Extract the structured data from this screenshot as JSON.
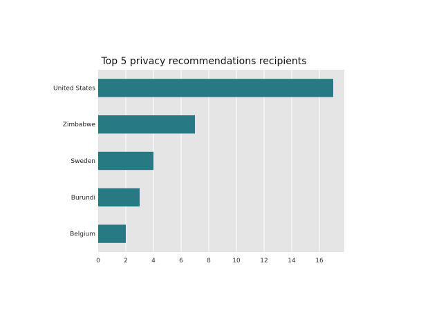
{
  "chart_data": {
    "type": "bar",
    "orientation": "horizontal",
    "title": "Top 5 privacy recommendations recipients",
    "xlabel": "",
    "ylabel": "",
    "categories": [
      "United States",
      "Zimbabwe",
      "Sweden",
      "Burundi",
      "Belgium"
    ],
    "values": [
      17,
      7,
      4,
      3,
      2
    ],
    "xlim": [
      0,
      17.8
    ],
    "xticks": [
      0,
      2,
      4,
      6,
      8,
      10,
      12,
      14,
      16
    ],
    "grid": "vertical",
    "legend": "none",
    "colors": {
      "bar": "#277a84",
      "plot_background": "#e5e5e5",
      "grid": "#ffffff"
    }
  }
}
